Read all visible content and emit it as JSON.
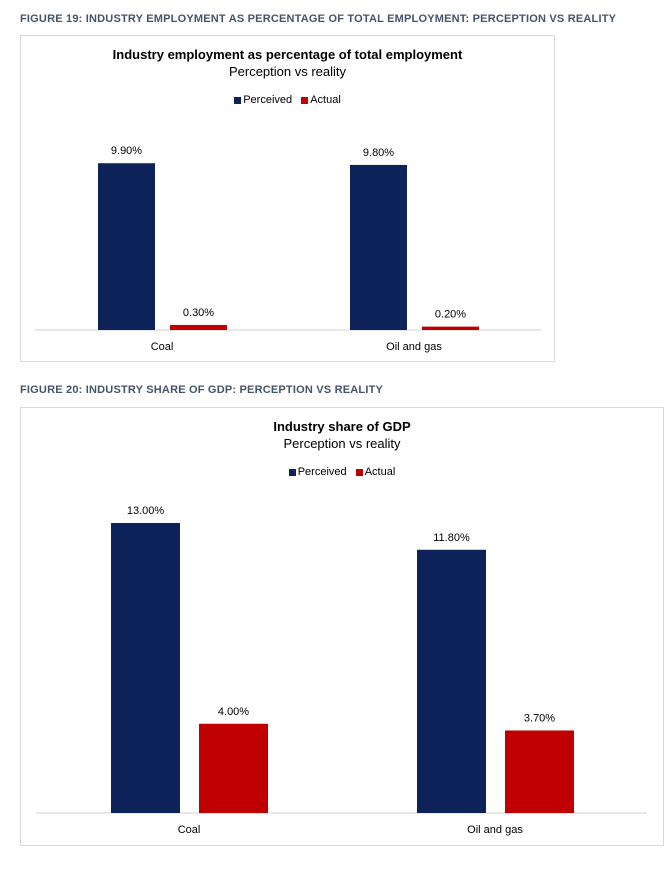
{
  "figure19": {
    "caption": "Figure 19: Industry employment as percentage of total employment: perception vs reality"
  },
  "figure20": {
    "caption": "Figure 20: Industry share of GDP: perception vs reality"
  },
  "colors": {
    "perceived": "#0d2259",
    "actual": "#c00000",
    "axis": "#d0d0d0"
  },
  "chart_data": [
    {
      "type": "bar",
      "title": "Industry employment as percentage of total employment",
      "subtitle": "Perception vs reality",
      "categories": [
        "Coal",
        "Oil and gas"
      ],
      "series": [
        {
          "name": "Perceived",
          "values": [
            9.9,
            9.8
          ],
          "labels": [
            "9.90%",
            "9.80%"
          ]
        },
        {
          "name": "Actual",
          "values": [
            0.3,
            0.2
          ],
          "labels": [
            "0.30%",
            "0.20%"
          ]
        }
      ],
      "legend": "top-center",
      "ylim": [
        0,
        11
      ],
      "grid": false
    },
    {
      "type": "bar",
      "title": "Industry share of GDP",
      "subtitle": "Perception vs reality",
      "categories": [
        "Coal",
        "Oil and gas"
      ],
      "series": [
        {
          "name": "Perceived",
          "values": [
            13.0,
            11.8
          ],
          "labels": [
            "13.00%",
            "11.80%"
          ]
        },
        {
          "name": "Actual",
          "values": [
            4.0,
            3.7
          ],
          "labels": [
            "4.00%",
            "3.70%"
          ]
        }
      ],
      "legend": "top-center",
      "ylim": [
        0,
        14
      ],
      "grid": false
    }
  ]
}
